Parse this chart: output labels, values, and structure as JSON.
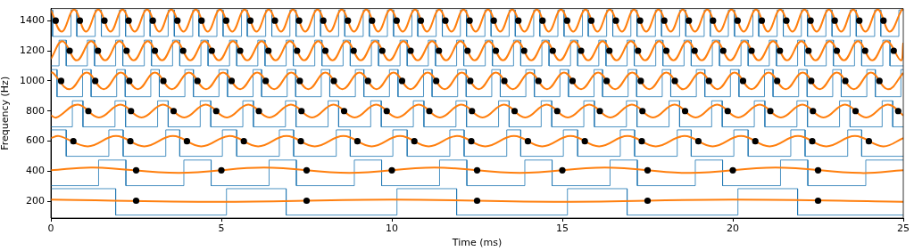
{
  "chart_data": {
    "type": "line",
    "xlabel": "Time (ms)",
    "ylabel": "Frequency (Hz)",
    "xlim": [
      0,
      25
    ],
    "xticks": [
      0,
      5,
      10,
      15,
      20,
      25
    ],
    "ylim": [
      90,
      1480
    ],
    "yticks": [
      200,
      400,
      600,
      800,
      1000,
      1200,
      1400
    ],
    "grid": false,
    "legend": false,
    "series": [
      {
        "color": "#1f77b4",
        "x": [
          0,
          0.05,
          0.05,
          0.59,
          0.59,
          0.76,
          0.76,
          1.3,
          1.3,
          1.48,
          1.48,
          2.01,
          2.01,
          2.19,
          2.19,
          2.73,
          2.73,
          2.91,
          2.91,
          3.44,
          3.44,
          3.62,
          3.62,
          4.16,
          4.16,
          4.34,
          4.34,
          4.87,
          4.87,
          5.05,
          5.05,
          5.59,
          5.59,
          5.76,
          5.76,
          6.3,
          6.3,
          6.48,
          6.48,
          7.01,
          7.01,
          7.19,
          7.19,
          7.73,
          7.73,
          7.91,
          7.91,
          8.44,
          8.44,
          8.62,
          8.62,
          9.16,
          9.16,
          9.34,
          9.34,
          9.87,
          9.87,
          10.05,
          10.05,
          10.59,
          10.59,
          10.76,
          10.76,
          11.3,
          11.3,
          11.48,
          11.48,
          12.01,
          12.01,
          12.19,
          12.19,
          12.73,
          12.73,
          12.91,
          12.91,
          13.44,
          13.44,
          13.62,
          13.62,
          14.16,
          14.16,
          14.34,
          14.34,
          14.87,
          14.87,
          15.05,
          15.05,
          15.59,
          15.59,
          15.76,
          15.76,
          16.3,
          16.3,
          16.48,
          16.48,
          17.01,
          17.01,
          17.19,
          17.19,
          17.73,
          17.73,
          17.91,
          17.91,
          18.44,
          18.44,
          18.62,
          18.62,
          19.16,
          19.16,
          19.34,
          19.34,
          19.87,
          19.87,
          20.05,
          20.05,
          20.59,
          20.59,
          20.76,
          20.76,
          21.3,
          21.3,
          21.48,
          21.48,
          22.01,
          22.01,
          22.19,
          22.19,
          22.73,
          22.73,
          22.91,
          22.91,
          23.44,
          23.44,
          23.62,
          23.62,
          24.16,
          24.16,
          24.34,
          24.34,
          24.87,
          24.87,
          25
        ],
        "values": [
          1470,
          1470,
          1295,
          1295,
          1470,
          1470,
          1295,
          1295,
          1470,
          1470,
          1295,
          1295,
          1470,
          1470,
          1295,
          1295,
          1470,
          1470,
          1295,
          1295,
          1470,
          1470,
          1295,
          1295,
          1470,
          1470,
          1295,
          1295,
          1470,
          1470,
          1295,
          1295,
          1470,
          1470,
          1295,
          1295,
          1470,
          1470,
          1295,
          1295,
          1470,
          1470,
          1295,
          1295,
          1470,
          1470,
          1295,
          1295,
          1470,
          1470,
          1295,
          1295,
          1470,
          1470,
          1295,
          1295,
          1470,
          1470,
          1295,
          1295,
          1470,
          1470,
          1295,
          1295,
          1470,
          1470,
          1295,
          1295,
          1470,
          1470,
          1295,
          1295,
          1470,
          1470,
          1295,
          1295,
          1470,
          1470,
          1295,
          1295,
          1470,
          1470,
          1295,
          1295,
          1470,
          1470,
          1295,
          1295,
          1470,
          1470,
          1295,
          1295,
          1470,
          1470,
          1295,
          1295,
          1470,
          1470,
          1295,
          1295,
          1470,
          1470,
          1295,
          1295,
          1470,
          1470,
          1295,
          1295,
          1470,
          1470,
          1295,
          1295,
          1470,
          1470,
          1295,
          1295,
          1470,
          1470,
          1295,
          1295,
          1470,
          1470,
          1295,
          1295,
          1470,
          1470,
          1295,
          1295,
          1470,
          1470,
          1295,
          1295,
          1470,
          1470,
          1295,
          1295,
          1470,
          1470,
          1295,
          1295,
          1470,
          1470
        ]
      },
      {
        "color": "#1f77b4",
        "x": [
          0,
          0.24,
          0.24,
          0.45,
          0.45,
          1.07,
          1.07,
          1.28,
          1.28,
          1.9,
          1.9,
          2.11,
          2.11,
          2.74,
          2.74,
          2.95,
          2.95,
          3.57,
          3.57,
          3.78,
          3.78,
          4.4,
          4.4,
          4.61,
          4.61,
          5.24,
          5.24,
          5.45,
          5.45,
          6.07,
          6.07,
          6.28,
          6.28,
          6.9,
          6.9,
          7.11,
          7.11,
          7.74,
          7.74,
          7.95,
          7.95,
          8.57,
          8.57,
          8.78,
          8.78,
          9.4,
          9.4,
          9.61,
          9.61,
          10.24,
          10.24,
          10.45,
          10.45,
          11.07,
          11.07,
          11.28,
          11.28,
          11.9,
          11.9,
          12.11,
          12.11,
          12.74,
          12.74,
          12.95,
          12.95,
          13.57,
          13.57,
          13.78,
          13.78,
          14.4,
          14.4,
          14.61,
          14.61,
          15.24,
          15.24,
          15.45,
          15.45,
          16.07,
          16.07,
          16.28,
          16.28,
          16.9,
          16.9,
          17.11,
          17.11,
          17.74,
          17.74,
          17.95,
          17.95,
          18.57,
          18.57,
          18.78,
          18.78,
          19.4,
          19.4,
          19.61,
          19.61,
          20.24,
          20.24,
          20.45,
          20.45,
          21.07,
          21.07,
          21.28,
          21.28,
          21.9,
          21.9,
          22.11,
          22.11,
          22.74,
          22.74,
          22.95,
          22.95,
          23.57,
          23.57,
          23.78,
          23.78,
          24.4,
          24.4,
          24.61,
          24.61,
          25
        ],
        "values": [
          1100,
          1100,
          1270,
          1270,
          1100,
          1100,
          1270,
          1270,
          1100,
          1100,
          1270,
          1270,
          1100,
          1100,
          1270,
          1270,
          1100,
          1100,
          1270,
          1270,
          1100,
          1100,
          1270,
          1270,
          1100,
          1100,
          1270,
          1270,
          1100,
          1100,
          1270,
          1270,
          1100,
          1100,
          1270,
          1270,
          1100,
          1100,
          1270,
          1270,
          1100,
          1100,
          1270,
          1270,
          1100,
          1100,
          1270,
          1270,
          1100,
          1100,
          1270,
          1270,
          1100,
          1100,
          1270,
          1270,
          1100,
          1100,
          1270,
          1270,
          1100,
          1100,
          1270,
          1270,
          1100,
          1100,
          1270,
          1270,
          1100,
          1100,
          1270,
          1270,
          1100,
          1100,
          1270,
          1270,
          1100,
          1100,
          1270,
          1270,
          1100,
          1100,
          1270,
          1270,
          1100,
          1100,
          1270,
          1270,
          1100,
          1100,
          1270,
          1270,
          1100,
          1100,
          1270,
          1270,
          1100,
          1100,
          1270,
          1270,
          1100,
          1100,
          1270,
          1270,
          1100,
          1100,
          1270,
          1270,
          1100,
          1100,
          1270,
          1270,
          1100,
          1100,
          1270,
          1270,
          1100,
          1100,
          1270,
          1270,
          1100,
          1100
        ]
      },
      {
        "color": "#1f77b4",
        "x": [
          0,
          0.18,
          0.18,
          0.93,
          0.93,
          1.18,
          1.18,
          1.93,
          1.93,
          2.18,
          2.18,
          2.93,
          2.93,
          3.18,
          3.18,
          3.93,
          3.93,
          4.18,
          4.18,
          4.93,
          4.93,
          5.18,
          5.18,
          5.93,
          5.93,
          6.18,
          6.18,
          6.93,
          6.93,
          7.18,
          7.18,
          7.93,
          7.93,
          8.18,
          8.18,
          8.93,
          8.93,
          9.18,
          9.18,
          9.93,
          9.93,
          10.18,
          10.18,
          10.93,
          10.93,
          11.18,
          11.18,
          11.93,
          11.93,
          12.18,
          12.18,
          12.93,
          12.93,
          13.18,
          13.18,
          13.93,
          13.93,
          14.18,
          14.18,
          14.93,
          14.93,
          15.18,
          15.18,
          15.93,
          15.93,
          16.18,
          16.18,
          16.93,
          16.93,
          17.18,
          17.18,
          17.93,
          17.93,
          18.18,
          18.18,
          18.93,
          18.93,
          19.18,
          19.18,
          19.93,
          19.93,
          20.18,
          20.18,
          20.93,
          20.93,
          21.18,
          21.18,
          21.93,
          21.93,
          22.18,
          22.18,
          22.93,
          22.93,
          23.18,
          23.18,
          23.93,
          23.93,
          24.18,
          24.18,
          24.93,
          24.93,
          25
        ],
        "values": [
          1075,
          1075,
          895,
          895,
          1075,
          1075,
          895,
          895,
          1075,
          1075,
          895,
          895,
          1075,
          1075,
          895,
          895,
          1075,
          1075,
          895,
          895,
          1075,
          1075,
          895,
          895,
          1075,
          1075,
          895,
          895,
          1075,
          1075,
          895,
          895,
          1075,
          1075,
          895,
          895,
          1075,
          1075,
          895,
          895,
          1075,
          1075,
          895,
          895,
          1075,
          1075,
          895,
          895,
          1075,
          1075,
          895,
          895,
          1075,
          1075,
          895,
          895,
          1075,
          1075,
          895,
          895,
          1075,
          1075,
          895,
          895,
          1075,
          1075,
          895,
          895,
          1075,
          1075,
          895,
          895,
          1075,
          1075,
          895,
          895,
          1075,
          1075,
          895,
          895,
          1075,
          1075,
          895,
          895,
          1075,
          1075,
          895,
          895,
          1075,
          1075,
          895,
          895,
          1075,
          1075,
          895,
          895,
          1075,
          1075,
          895,
          895,
          1075,
          1075
        ]
      },
      {
        "color": "#1f77b4",
        "x": [
          0,
          0.63,
          0.63,
          0.94,
          0.94,
          1.88,
          1.88,
          2.19,
          2.19,
          3.13,
          3.13,
          3.44,
          3.44,
          4.38,
          4.38,
          4.69,
          4.69,
          5.63,
          5.63,
          5.94,
          5.94,
          6.88,
          6.88,
          7.19,
          7.19,
          8.13,
          8.13,
          8.44,
          8.44,
          9.38,
          9.38,
          9.69,
          9.69,
          10.63,
          10.63,
          10.94,
          10.94,
          11.88,
          11.88,
          12.19,
          12.19,
          13.13,
          13.13,
          13.44,
          13.44,
          14.38,
          14.38,
          14.69,
          14.69,
          15.63,
          15.63,
          15.94,
          15.94,
          16.88,
          16.88,
          17.19,
          17.19,
          18.13,
          18.13,
          18.44,
          18.44,
          19.38,
          19.38,
          19.69,
          19.69,
          20.63,
          20.63,
          20.94,
          20.94,
          21.88,
          21.88,
          22.19,
          22.19,
          23.13,
          23.13,
          23.44,
          23.44,
          24.38,
          24.38,
          24.69,
          24.69,
          25
        ],
        "values": [
          695,
          695,
          868,
          868,
          695,
          695,
          868,
          868,
          695,
          695,
          868,
          868,
          695,
          695,
          868,
          868,
          695,
          695,
          868,
          868,
          695,
          695,
          868,
          868,
          695,
          695,
          868,
          868,
          695,
          695,
          868,
          868,
          695,
          695,
          868,
          868,
          695,
          695,
          868,
          868,
          695,
          695,
          868,
          868,
          695,
          695,
          868,
          868,
          695,
          695,
          868,
          868,
          695,
          695,
          868,
          868,
          695,
          695,
          868,
          868,
          695,
          695,
          868,
          868,
          695,
          695,
          868,
          868,
          695,
          695,
          868,
          868,
          695,
          695,
          868,
          868,
          695,
          695,
          868,
          868,
          695,
          695
        ]
      },
      {
        "color": "#1f77b4",
        "x": [
          0,
          0.45,
          0.45,
          1.7,
          1.7,
          2.12,
          2.12,
          3.37,
          3.37,
          3.78,
          3.78,
          5.03,
          5.03,
          5.45,
          5.45,
          6.7,
          6.7,
          7.12,
          7.12,
          8.37,
          8.37,
          8.78,
          8.78,
          10.03,
          10.03,
          10.45,
          10.45,
          11.7,
          11.7,
          12.12,
          12.12,
          13.37,
          13.37,
          13.78,
          13.78,
          15.03,
          15.03,
          15.45,
          15.45,
          16.7,
          16.7,
          17.12,
          17.12,
          18.37,
          18.37,
          18.78,
          18.78,
          20.03,
          20.03,
          20.45,
          20.45,
          21.7,
          21.7,
          22.12,
          22.12,
          23.37,
          23.37,
          23.78,
          23.78,
          25
        ],
        "values": [
          675,
          675,
          500,
          500,
          675,
          675,
          500,
          500,
          675,
          675,
          500,
          500,
          675,
          675,
          500,
          500,
          675,
          675,
          500,
          500,
          675,
          675,
          500,
          500,
          675,
          675,
          500,
          500,
          675,
          675,
          500,
          500,
          675,
          675,
          500,
          500,
          675,
          675,
          500,
          500,
          675,
          675,
          500,
          500,
          675,
          675,
          500,
          500,
          675,
          675,
          500,
          500,
          675,
          675,
          500,
          500,
          675,
          675,
          500,
          500
        ]
      },
      {
        "color": "#1f77b4",
        "x": [
          0,
          1.4,
          1.4,
          2.2,
          2.2,
          3.9,
          3.9,
          4.7,
          4.7,
          6.4,
          6.4,
          7.2,
          7.2,
          8.9,
          8.9,
          9.7,
          9.7,
          11.4,
          11.4,
          12.2,
          12.2,
          13.9,
          13.9,
          14.7,
          14.7,
          16.4,
          16.4,
          17.2,
          17.2,
          18.9,
          18.9,
          19.7,
          19.7,
          21.4,
          21.4,
          22.2,
          22.2,
          23.9,
          23.9,
          25
        ],
        "values": [
          305,
          305,
          475,
          475,
          305,
          305,
          475,
          475,
          305,
          305,
          475,
          475,
          305,
          305,
          475,
          475,
          305,
          305,
          475,
          475,
          305,
          305,
          475,
          475,
          305,
          305,
          475,
          475,
          305,
          305,
          475,
          475,
          305,
          305,
          475,
          475,
          305,
          305,
          475,
          475
        ]
      },
      {
        "color": "#1f77b4",
        "x": [
          0,
          1.9,
          1.9,
          5.15,
          5.15,
          6.9,
          6.9,
          10.15,
          10.15,
          11.9,
          11.9,
          15.15,
          15.15,
          16.9,
          16.9,
          20.15,
          20.15,
          21.9,
          21.9,
          25
        ],
        "values": [
          285,
          285,
          110,
          110,
          285,
          285,
          110,
          110,
          285,
          285,
          110,
          110,
          285,
          285,
          110,
          110,
          285,
          285,
          110,
          110
        ]
      },
      {
        "color": "#ff7f0e",
        "x": [
          0,
          0.32,
          0.68,
          1.03,
          1.39,
          1.75,
          2.1,
          2.46,
          2.82,
          3.18,
          3.53,
          3.89,
          4.25,
          4.6,
          4.96,
          5.32,
          5.68,
          6.03,
          6.39,
          6.75,
          7.1,
          7.46,
          7.82,
          8.18,
          8.53,
          8.89,
          9.25,
          9.6,
          9.96,
          10.32,
          10.68,
          11.03,
          11.39,
          11.75,
          12.1,
          12.46,
          12.82,
          13.18,
          13.53,
          13.89,
          14.25,
          14.6,
          14.96,
          15.32,
          15.68,
          16.03,
          16.39,
          16.75,
          17.1,
          17.46,
          17.82,
          18.18,
          18.53,
          18.89,
          19.25,
          19.6,
          19.96,
          20.32,
          20.68,
          21.03,
          21.39,
          21.75,
          22.1,
          22.46,
          22.82,
          23.18,
          23.53,
          23.89,
          24.25,
          24.6,
          24.96,
          25
        ],
        "values": [
          1469,
          1327,
          1473,
          1327,
          1473,
          1327,
          1473,
          1327,
          1473,
          1327,
          1473,
          1327,
          1473,
          1327,
          1473,
          1327,
          1473,
          1327,
          1473,
          1327,
          1473,
          1327,
          1473,
          1327,
          1473,
          1327,
          1473,
          1327,
          1473,
          1327,
          1473,
          1327,
          1473,
          1327,
          1473,
          1327,
          1473,
          1327,
          1473,
          1327,
          1473,
          1327,
          1473,
          1327,
          1473,
          1327,
          1473,
          1327,
          1473,
          1327,
          1473,
          1327,
          1473,
          1327,
          1473,
          1327,
          1473,
          1327,
          1473,
          1327,
          1473,
          1327,
          1473,
          1327,
          1473,
          1327,
          1473,
          1327,
          1473,
          1327,
          1473,
          1469
        ]
      },
      {
        "color": "#ff7f0e",
        "x": [
          0,
          0.34,
          0.76,
          1.18,
          1.59,
          2.01,
          2.43,
          2.84,
          3.26,
          3.67,
          4.09,
          4.51,
          4.93,
          5.34,
          5.76,
          6.18,
          6.59,
          7.01,
          7.43,
          7.84,
          8.26,
          8.67,
          9.09,
          9.51,
          9.93,
          10.34,
          10.76,
          11.18,
          11.59,
          12.01,
          12.43,
          12.84,
          13.26,
          13.67,
          14.09,
          14.51,
          14.93,
          15.34,
          15.76,
          16.18,
          16.59,
          17.01,
          17.43,
          17.84,
          18.26,
          18.67,
          19.09,
          19.51,
          19.93,
          20.34,
          20.76,
          21.18,
          21.59,
          22.01,
          22.43,
          22.84,
          23.26,
          23.67,
          24.09,
          24.51,
          24.93,
          25
        ],
        "values": [
          1146,
          1264,
          1136,
          1264,
          1136,
          1264,
          1136,
          1264,
          1136,
          1264,
          1136,
          1264,
          1136,
          1264,
          1136,
          1264,
          1136,
          1264,
          1136,
          1264,
          1136,
          1264,
          1136,
          1264,
          1136,
          1264,
          1136,
          1264,
          1136,
          1264,
          1136,
          1264,
          1136,
          1264,
          1136,
          1264,
          1136,
          1264,
          1136,
          1264,
          1136,
          1264,
          1136,
          1264,
          1136,
          1264,
          1136,
          1264,
          1136,
          1264,
          1136,
          1264,
          1136,
          1264,
          1136,
          1264,
          1136,
          1264,
          1136,
          1264,
          1136,
          1253
        ]
      },
      {
        "color": "#ff7f0e",
        "x": [
          0,
          0.05,
          0.55,
          1.05,
          1.55,
          2.05,
          2.55,
          3.05,
          3.55,
          4.05,
          4.55,
          5.05,
          5.55,
          6.05,
          6.55,
          7.05,
          7.55,
          8.05,
          8.55,
          9.05,
          9.55,
          10.05,
          10.55,
          11.05,
          11.55,
          12.05,
          12.55,
          13.05,
          13.55,
          14.05,
          14.55,
          15.05,
          15.55,
          16.05,
          16.55,
          17.05,
          17.55,
          18.05,
          18.55,
          19.05,
          19.55,
          20.05,
          20.55,
          21.05,
          21.55,
          22.05,
          22.55,
          23.05,
          23.55,
          24.05,
          24.55,
          25
        ],
        "values": [
          1053,
          1056,
          944,
          1056,
          944,
          1056,
          944,
          1056,
          944,
          1056,
          944,
          1056,
          944,
          1056,
          944,
          1056,
          944,
          1056,
          944,
          1056,
          944,
          1056,
          944,
          1056,
          944,
          1056,
          944,
          1056,
          944,
          1056,
          944,
          1056,
          944,
          1056,
          944,
          1056,
          944,
          1056,
          944,
          1056,
          944,
          1056,
          944,
          1056,
          944,
          1056,
          944,
          1056,
          944,
          1056,
          944,
          1053
        ]
      },
      {
        "color": "#ff7f0e",
        "x": [
          0,
          0.16,
          0.79,
          1.41,
          2.04,
          2.66,
          3.29,
          3.91,
          4.54,
          5.16,
          5.79,
          6.41,
          7.04,
          7.66,
          8.29,
          8.91,
          9.54,
          10.16,
          10.79,
          11.41,
          12.04,
          12.66,
          13.29,
          13.91,
          14.54,
          15.16,
          15.79,
          16.41,
          17.04,
          17.66,
          18.29,
          18.91,
          19.54,
          20.16,
          20.79,
          21.41,
          22.04,
          22.66,
          23.29,
          23.91,
          24.54,
          25
        ],
        "values": [
          771,
          757,
          843,
          757,
          843,
          757,
          843,
          757,
          843,
          757,
          843,
          757,
          843,
          757,
          843,
          757,
          843,
          757,
          843,
          757,
          843,
          757,
          843,
          757,
          843,
          757,
          843,
          757,
          843,
          757,
          843,
          757,
          843,
          757,
          843,
          757,
          843,
          757,
          843,
          757,
          843,
          771
        ]
      },
      {
        "color": "#ff7f0e",
        "x": [
          0,
          0.24,
          1.08,
          1.91,
          2.74,
          3.58,
          4.41,
          5.24,
          6.08,
          6.91,
          7.74,
          8.58,
          9.41,
          10.24,
          11.08,
          11.91,
          12.74,
          13.58,
          14.41,
          15.24,
          16.08,
          16.91,
          17.74,
          18.58,
          19.41,
          20.24,
          21.08,
          21.91,
          22.74,
          23.58,
          24.41,
          25
        ],
        "values": [
          621,
          634,
          566,
          634,
          566,
          634,
          566,
          634,
          566,
          634,
          566,
          634,
          566,
          634,
          566,
          634,
          566,
          634,
          566,
          634,
          566,
          634,
          566,
          634,
          566,
          634,
          566,
          634,
          566,
          634,
          566,
          621
        ]
      },
      {
        "color": "#ff7f0e",
        "x": [
          0,
          1.25,
          3.75,
          6.25,
          8.75,
          11.25,
          13.75,
          16.25,
          18.75,
          21.25,
          23.75,
          25
        ],
        "values": [
          407,
          425,
          389,
          425,
          389,
          425,
          389,
          425,
          389,
          425,
          389,
          407
        ]
      },
      {
        "color": "#ff7f0e",
        "x": [
          0,
          5,
          10,
          15,
          20,
          25
        ],
        "values": [
          212,
          198,
          212,
          198,
          212,
          198
        ]
      },
      {
        "type": "scatter",
        "color": "#000000",
        "marker": "circle",
        "x": [
          0.14,
          0.85,
          1.57,
          2.28,
          2.99,
          3.71,
          4.42,
          5.14,
          5.85,
          6.57,
          7.28,
          7.99,
          8.71,
          9.42,
          10.14,
          10.85,
          11.57,
          12.28,
          12.99,
          13.71,
          14.42,
          15.14,
          15.85,
          16.57,
          17.28,
          17.99,
          18.71,
          19.42,
          20.14,
          20.85,
          21.57,
          22.28,
          22.99,
          23.71,
          24.42
        ],
        "values": [
          1400,
          1400,
          1400,
          1400,
          1400,
          1400,
          1400,
          1400,
          1400,
          1400,
          1400,
          1400,
          1400,
          1400,
          1400,
          1400,
          1400,
          1400,
          1400,
          1400,
          1400,
          1400,
          1400,
          1400,
          1400,
          1400,
          1400,
          1400,
          1400,
          1400,
          1400,
          1400,
          1400,
          1400,
          1400
        ]
      },
      {
        "type": "scatter",
        "color": "#000000",
        "marker": "circle",
        "x": [
          0.55,
          1.38,
          2.22,
          3.05,
          3.88,
          4.72,
          5.55,
          6.38,
          7.22,
          8.05,
          8.88,
          9.72,
          10.55,
          11.38,
          12.22,
          13.05,
          13.88,
          14.72,
          15.55,
          16.38,
          17.22,
          18.05,
          18.88,
          19.72,
          20.55,
          21.38,
          22.22,
          23.05,
          23.88,
          24.72
        ],
        "values": [
          1200,
          1200,
          1200,
          1200,
          1200,
          1200,
          1200,
          1200,
          1200,
          1200,
          1200,
          1200,
          1200,
          1200,
          1200,
          1200,
          1200,
          1200,
          1200,
          1200,
          1200,
          1200,
          1200,
          1200,
          1200,
          1200,
          1200,
          1200,
          1200,
          1200
        ]
      },
      {
        "type": "scatter",
        "color": "#000000",
        "marker": "circle",
        "x": [
          0.3,
          1.3,
          2.3,
          3.3,
          4.3,
          5.3,
          6.3,
          7.3,
          8.3,
          9.3,
          10.3,
          11.3,
          12.3,
          13.3,
          14.3,
          15.3,
          16.3,
          17.3,
          18.3,
          19.3,
          20.3,
          21.3,
          22.3,
          23.3,
          24.3
        ],
        "values": [
          1000,
          1000,
          1000,
          1000,
          1000,
          1000,
          1000,
          1000,
          1000,
          1000,
          1000,
          1000,
          1000,
          1000,
          1000,
          1000,
          1000,
          1000,
          1000,
          1000,
          1000,
          1000,
          1000,
          1000,
          1000
        ]
      },
      {
        "type": "scatter",
        "color": "#000000",
        "marker": "circle",
        "x": [
          1.1,
          2.35,
          3.6,
          4.85,
          6.1,
          7.35,
          8.6,
          9.85,
          11.1,
          12.35,
          13.6,
          14.85,
          16.1,
          17.35,
          18.6,
          19.85,
          21.1,
          22.35,
          23.6,
          24.85
        ],
        "values": [
          800,
          800,
          800,
          800,
          800,
          800,
          800,
          800,
          800,
          800,
          800,
          800,
          800,
          800,
          800,
          800,
          800,
          800,
          800,
          800
        ]
      },
      {
        "type": "scatter",
        "color": "#000000",
        "marker": "circle",
        "x": [
          0.66,
          2.33,
          3.99,
          5.66,
          7.33,
          8.99,
          10.66,
          12.33,
          13.99,
          15.66,
          17.33,
          18.99,
          20.66,
          22.33,
          23.99
        ],
        "values": [
          600,
          600,
          600,
          600,
          600,
          600,
          600,
          600,
          600,
          600,
          600,
          600,
          600,
          600,
          600
        ]
      },
      {
        "type": "scatter",
        "color": "#000000",
        "marker": "circle",
        "x": [
          2.5,
          5,
          7.5,
          10,
          12.5,
          15,
          17.5,
          20,
          22.5
        ],
        "values": [
          407,
          407,
          407,
          407,
          407,
          407,
          407,
          407,
          407
        ]
      },
      {
        "type": "scatter",
        "color": "#000000",
        "marker": "circle",
        "x": [
          2.5,
          7.5,
          12.5,
          17.5,
          22.5
        ],
        "values": [
          205,
          205,
          205,
          205,
          205
        ]
      }
    ]
  }
}
